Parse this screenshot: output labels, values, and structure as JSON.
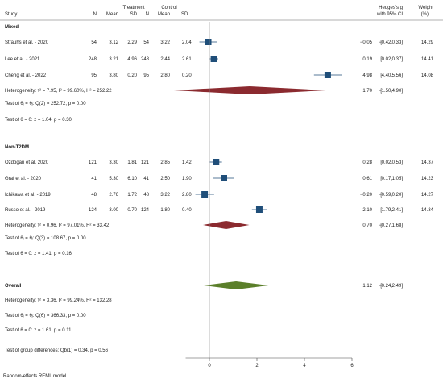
{
  "headers": {
    "study": "Study",
    "treatment": "Treatment",
    "control": "Control",
    "n": "N",
    "mean": "Mean",
    "sd": "SD",
    "effect_line1": "Hedges's g",
    "effect_line2": "with 95% CI",
    "weight_line1": "Weight",
    "weight_line2": "(%)"
  },
  "colors": {
    "study_marker": "#1f4e79",
    "subgroup_diamond": "#8b2a2f",
    "overall_diamond": "#5b7f2a"
  },
  "footer": "Random-effects REML model",
  "chart_data": {
    "type": "forest",
    "measure": "Hedges's g with 95% CI",
    "xlim": [
      -1,
      6
    ],
    "x_ticks": [
      0,
      2,
      4,
      6
    ],
    "reference_line": 0,
    "groups": [
      {
        "name": "Mixed",
        "studies": [
          {
            "label": "Strauhs et al. - 2020",
            "t_n": "54",
            "t_mean": "3.12",
            "t_sd": "2.29",
            "c_n": "54",
            "c_mean": "3.22",
            "c_sd": "2.04",
            "g": -0.05,
            "lo": -0.42,
            "hi": 0.33,
            "g_text": "−0.05",
            "lo_text": "−0.42,",
            "hi_text": "0.33]",
            "weight": "14.29"
          },
          {
            "label": "Lee et al. - 2021",
            "t_n": "248",
            "t_mean": "3.21",
            "t_sd": "4.96",
            "c_n": "248",
            "c_mean": "2.44",
            "c_sd": "2.61",
            "g": 0.19,
            "lo": 0.02,
            "hi": 0.37,
            "g_text": "0.19",
            "lo_text": "0.02,",
            "hi_text": "0.37]",
            "weight": "14.41"
          },
          {
            "label": "Cheng et al. - 2022",
            "t_n": "95",
            "t_mean": "3.80",
            "t_sd": "0.20",
            "c_n": "95",
            "c_mean": "2.80",
            "c_sd": "0.20",
            "g": 4.98,
            "lo": 4.4,
            "hi": 5.56,
            "g_text": "4.98",
            "lo_text": "4.40,",
            "hi_text": "5.56]",
            "weight": "14.08"
          }
        ],
        "pooled": {
          "label": "Heterogeneity: τ² = 7.95, I² = 99.60%, H² = 252.22",
          "g": 1.7,
          "lo": -1.5,
          "hi": 4.9,
          "g_text": "1.70",
          "lo_text": "−1.50,",
          "hi_text": "4.90]"
        },
        "tests": [
          "Test of θᵢ = θⱼ: Q(2) = 252.72, p = 0.00",
          "Test of θ = 0: z = 1.04, p = 0.30"
        ]
      },
      {
        "name": "Non-T2DM",
        "studies": [
          {
            "label": "Ozdogan et al. 2020",
            "t_n": "121",
            "t_mean": "3.30",
            "t_sd": "1.81",
            "c_n": "121",
            "c_mean": "2.85",
            "c_sd": "1.42",
            "g": 0.28,
            "lo": 0.02,
            "hi": 0.53,
            "g_text": "0.28",
            "lo_text": "0.02,",
            "hi_text": "0.53]",
            "weight": "14.37"
          },
          {
            "label": "Graf et al. - 2020",
            "t_n": "41",
            "t_mean": "5.30",
            "t_sd": "6.10",
            "c_n": "41",
            "c_mean": "2.50",
            "c_sd": "1.90",
            "g": 0.61,
            "lo": 0.17,
            "hi": 1.05,
            "g_text": "0.61",
            "lo_text": "0.17,",
            "hi_text": "1.05]",
            "weight": "14.23"
          },
          {
            "label": "Ichikawa et al. - 2019",
            "t_n": "48",
            "t_mean": "2.76",
            "t_sd": "1.72",
            "c_n": "48",
            "c_mean": "3.22",
            "c_sd": "2.80",
            "g": -0.2,
            "lo": -0.59,
            "hi": 0.2,
            "g_text": "−0.20",
            "lo_text": "−0.59,",
            "hi_text": "0.20]",
            "weight": "14.27"
          },
          {
            "label": "Russo et al. - 2019",
            "t_n": "124",
            "t_mean": "3.00",
            "t_sd": "0.70",
            "c_n": "124",
            "c_mean": "1.80",
            "c_sd": "0.40",
            "g": 2.1,
            "lo": 1.79,
            "hi": 2.41,
            "g_text": "2.10",
            "lo_text": "1.79,",
            "hi_text": "2.41]",
            "weight": "14.34"
          }
        ],
        "pooled": {
          "label": "Heterogeneity: τ² = 0.96, I² = 97.01%, H² = 33.42",
          "g": 0.7,
          "lo": -0.27,
          "hi": 1.68,
          "g_text": "0.70",
          "lo_text": "−0.27,",
          "hi_text": "1.68]"
        },
        "tests": [
          "Test of θᵢ = θⱼ: Q(3) = 108.67, p = 0.00",
          "Test of θ = 0: z = 1.41, p = 0.16"
        ]
      }
    ],
    "overall": {
      "name": "Overall",
      "g": 1.12,
      "lo": -0.24,
      "hi": 2.49,
      "g_text": "1.12",
      "lo_text": "−0.24,",
      "hi_text": "2.49]",
      "heterogeneity": "Heterogeneity: τ² = 3.36, I² = 99.24%, H² = 132.28",
      "tests": [
        "Test of θᵢ = θⱼ: Q(6) = 366.33, p = 0.00",
        "Test of θ = 0: z = 1.61, p = 0.11"
      ],
      "group_test": "Test of group differences: Qb(1) = 0.34, p = 0.56"
    }
  }
}
